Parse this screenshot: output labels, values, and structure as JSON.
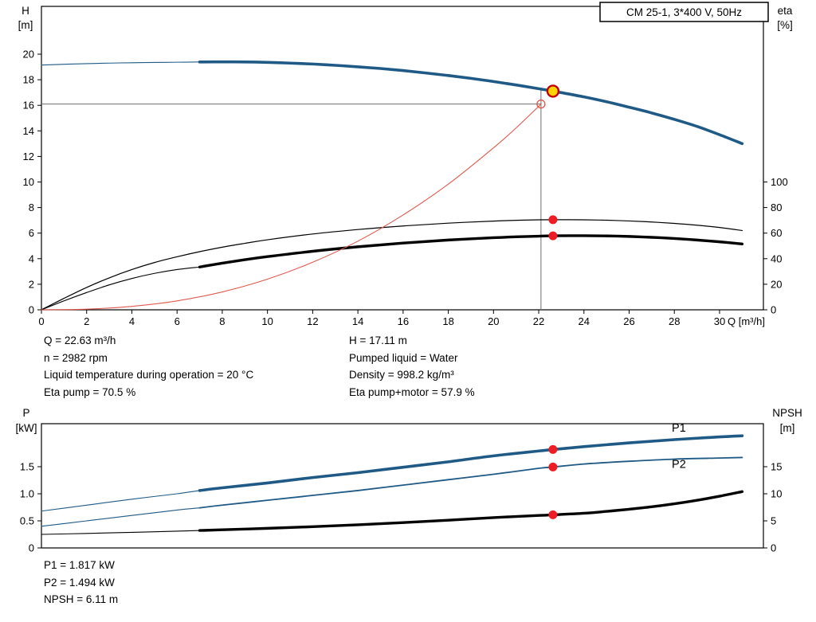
{
  "colors": {
    "blue": "#1f5a87",
    "black": "#000000",
    "red": "#e0584e",
    "marker_red": "#ee1c25",
    "duty_point_fill": "#ffd400",
    "duty_point_ring": "#c00000",
    "ref_line": "#6e6e6e",
    "frame": "#000000"
  },
  "chart_data": [
    {
      "id": "head-efficiency",
      "type": "line",
      "title": "CM 25-1, 3*400 V, 50Hz",
      "x_axis": {
        "label": "Q [m³/h]",
        "min": 0,
        "max": 31.94,
        "ticks": [
          0,
          2,
          4,
          6,
          8,
          10,
          12,
          14,
          16,
          18,
          20,
          22,
          24,
          26,
          28,
          30
        ]
      },
      "y_left": {
        "label": [
          "H",
          "[m]"
        ],
        "min": 0,
        "max": 23.74,
        "ticks": [
          0,
          2,
          4,
          6,
          8,
          10,
          12,
          14,
          16,
          18,
          20
        ]
      },
      "y_right": {
        "label": [
          "eta",
          "[%]"
        ],
        "min": 0,
        "max": 237.4,
        "ticks": [
          0,
          20,
          40,
          60,
          80,
          100
        ]
      },
      "series": [
        {
          "name": "head-low-flow",
          "axis": "left",
          "color": "blue",
          "width": 1.1,
          "points": [
            [
              0,
              19.15
            ],
            [
              1,
              19.21
            ],
            [
              2,
              19.26
            ],
            [
              3,
              19.3
            ],
            [
              4,
              19.33
            ],
            [
              5,
              19.35
            ],
            [
              6,
              19.37
            ],
            [
              7,
              19.39
            ],
            [
              7.6,
              19.4
            ]
          ]
        },
        {
          "name": "head",
          "axis": "left",
          "color": "blue",
          "width": 3.6,
          "points": [
            [
              7,
              19.39
            ],
            [
              8,
              19.4
            ],
            [
              9,
              19.39
            ],
            [
              10,
              19.36
            ],
            [
              11,
              19.3
            ],
            [
              12,
              19.23
            ],
            [
              13,
              19.13
            ],
            [
              14,
              19.01
            ],
            [
              15,
              18.88
            ],
            [
              16,
              18.72
            ],
            [
              17,
              18.53
            ],
            [
              18,
              18.33
            ],
            [
              19,
              18.11
            ],
            [
              20,
              17.86
            ],
            [
              21,
              17.59
            ],
            [
              22,
              17.3
            ],
            [
              22.63,
              17.11
            ],
            [
              23,
              16.99
            ],
            [
              24,
              16.66
            ],
            [
              25,
              16.28
            ],
            [
              26,
              15.85
            ],
            [
              27,
              15.4
            ],
            [
              28,
              14.9
            ],
            [
              29,
              14.35
            ],
            [
              30,
              13.7
            ],
            [
              31,
              13.0
            ]
          ]
        },
        {
          "name": "eta-pump",
          "axis": "right",
          "color": "black",
          "width": 1.2,
          "points": [
            [
              0,
              0
            ],
            [
              1,
              9
            ],
            [
              2,
              17.5
            ],
            [
              3,
              25
            ],
            [
              4,
              31.5
            ],
            [
              5,
              37
            ],
            [
              6,
              41.5
            ],
            [
              7,
              45.5
            ],
            [
              8,
              49
            ],
            [
              9,
              52
            ],
            [
              10,
              54.8
            ],
            [
              12,
              59.3
            ],
            [
              14,
              62.8
            ],
            [
              16,
              65.6
            ],
            [
              18,
              67.8
            ],
            [
              20,
              69.4
            ],
            [
              21,
              70
            ],
            [
              22,
              70.4
            ],
            [
              22.63,
              70.5
            ],
            [
              24,
              70.4
            ],
            [
              25,
              70.1
            ],
            [
              26,
              69.5
            ],
            [
              27,
              68.7
            ],
            [
              28,
              67.6
            ],
            [
              29,
              66.2
            ],
            [
              30,
              64.4
            ],
            [
              31,
              62
            ]
          ]
        },
        {
          "name": "eta-pump-motor-low-flow",
          "axis": "right",
          "color": "black",
          "width": 1.1,
          "points": [
            [
              0,
              0
            ],
            [
              1,
              7
            ],
            [
              2,
              13.5
            ],
            [
              3,
              19.5
            ],
            [
              4,
              24.5
            ],
            [
              5,
              28.5
            ],
            [
              6,
              31.5
            ],
            [
              7,
              33.5
            ]
          ]
        },
        {
          "name": "eta-pump-motor",
          "axis": "right",
          "color": "black",
          "width": 3.4,
          "points": [
            [
              7,
              33.5
            ],
            [
              8,
              36.5
            ],
            [
              9,
              39.2
            ],
            [
              10,
              41.6
            ],
            [
              12,
              45.8
            ],
            [
              14,
              49.3
            ],
            [
              16,
              52.2
            ],
            [
              18,
              54.6
            ],
            [
              20,
              56.4
            ],
            [
              21,
              57.1
            ],
            [
              22,
              57.6
            ],
            [
              22.63,
              57.9
            ],
            [
              24,
              58
            ],
            [
              25,
              57.8
            ],
            [
              26,
              57.4
            ],
            [
              27,
              56.7
            ],
            [
              28,
              55.8
            ],
            [
              29,
              54.6
            ],
            [
              30,
              53.2
            ],
            [
              31,
              51.5
            ]
          ]
        },
        {
          "name": "system-curve",
          "axis": "left",
          "color": "red",
          "width": 1.1,
          "points": [
            [
              0,
              0
            ],
            [
              2,
              0.05
            ],
            [
              4,
              0.27
            ],
            [
              6,
              0.7
            ],
            [
              8,
              1.4
            ],
            [
              10,
              2.4
            ],
            [
              12,
              3.72
            ],
            [
              14,
              5.37
            ],
            [
              16,
              7.42
            ],
            [
              18,
              9.83
            ],
            [
              20,
              12.67
            ],
            [
              21,
              14.23
            ],
            [
              22,
              15.92
            ],
            [
              22.1,
              16.1
            ]
          ]
        }
      ],
      "ref_lines": [
        {
          "type": "v",
          "x": 22.1,
          "y_from": 0,
          "y_to": 17.27
        },
        {
          "type": "h",
          "y": 16.1,
          "x_from": 0,
          "x_to": 22.1
        }
      ],
      "markers": [
        {
          "name": "duty-point",
          "style": "duty",
          "axis": "left",
          "x": 22.63,
          "y": 17.11
        },
        {
          "name": "requested-duty-point",
          "style": "open-red",
          "axis": "left",
          "x": 22.1,
          "y": 16.1
        },
        {
          "name": "eta-pump-duty",
          "style": "red-dot",
          "axis": "right",
          "x": 22.63,
          "y": 70.5
        },
        {
          "name": "eta-pump-motor-duty",
          "style": "red-dot",
          "axis": "right",
          "x": 22.63,
          "y": 57.9
        }
      ]
    },
    {
      "id": "power-npsh",
      "type": "line",
      "x_axis": {
        "label": "",
        "min": 0,
        "max": 31.94,
        "ticks": []
      },
      "y_left": {
        "label": [
          "P",
          "[kW]"
        ],
        "min": 0,
        "max": 2.294,
        "ticks": [
          0,
          0.5,
          1,
          1.5
        ],
        "tick_labels": [
          "0",
          "0.5",
          "1.0",
          "1.5"
        ]
      },
      "y_right": {
        "label": [
          "NPSH",
          "[m]"
        ],
        "min": 0,
        "max": 22.94,
        "ticks": [
          0,
          5,
          10,
          15
        ]
      },
      "series": [
        {
          "name": "p1-low-flow",
          "axis": "left",
          "color": "blue",
          "width": 1.1,
          "points": [
            [
              0,
              0.68
            ],
            [
              2,
              0.79
            ],
            [
              4,
              0.9
            ],
            [
              6,
              1.0
            ],
            [
              7,
              1.06
            ],
            [
              7.6,
              1.09
            ]
          ]
        },
        {
          "name": "p1",
          "axis": "left",
          "color": "blue",
          "width": 3.6,
          "points": [
            [
              7,
              1.06
            ],
            [
              8,
              1.11
            ],
            [
              10,
              1.2
            ],
            [
              12,
              1.3
            ],
            [
              14,
              1.39
            ],
            [
              16,
              1.49
            ],
            [
              18,
              1.59
            ],
            [
              20,
              1.7
            ],
            [
              22,
              1.79
            ],
            [
              22.63,
              1.817
            ],
            [
              24,
              1.87
            ],
            [
              26,
              1.94
            ],
            [
              28,
              2.0
            ],
            [
              30,
              2.05
            ],
            [
              31,
              2.07
            ]
          ]
        },
        {
          "name": "p2-low-flow",
          "axis": "left",
          "color": "blue",
          "width": 1.1,
          "points": [
            [
              0,
              0.4
            ],
            [
              2,
              0.5
            ],
            [
              4,
              0.6
            ],
            [
              6,
              0.7
            ],
            [
              7,
              0.74
            ]
          ]
        },
        {
          "name": "p2",
          "axis": "left",
          "color": "blue",
          "width": 1.8,
          "points": [
            [
              7,
              0.74
            ],
            [
              8,
              0.79
            ],
            [
              10,
              0.88
            ],
            [
              12,
              0.97
            ],
            [
              14,
              1.06
            ],
            [
              16,
              1.16
            ],
            [
              18,
              1.26
            ],
            [
              20,
              1.36
            ],
            [
              22,
              1.47
            ],
            [
              22.63,
              1.494
            ],
            [
              24,
              1.55
            ],
            [
              26,
              1.6
            ],
            [
              28,
              1.64
            ],
            [
              30,
              1.66
            ],
            [
              31,
              1.67
            ]
          ]
        },
        {
          "name": "npsh-low-flow",
          "axis": "right",
          "color": "black",
          "width": 1.1,
          "points": [
            [
              0,
              2.5
            ],
            [
              2,
              2.68
            ],
            [
              4,
              2.88
            ],
            [
              6,
              3.1
            ],
            [
              7,
              3.22
            ],
            [
              7.6,
              3.3
            ]
          ]
        },
        {
          "name": "npsh",
          "axis": "right",
          "color": "black",
          "width": 3.4,
          "points": [
            [
              7,
              3.22
            ],
            [
              8,
              3.35
            ],
            [
              10,
              3.62
            ],
            [
              12,
              3.92
            ],
            [
              14,
              4.28
            ],
            [
              16,
              4.68
            ],
            [
              18,
              5.12
            ],
            [
              20,
              5.6
            ],
            [
              22,
              6.0
            ],
            [
              22.63,
              6.11
            ],
            [
              24,
              6.4
            ],
            [
              25,
              6.75
            ],
            [
              26,
              7.15
            ],
            [
              27,
              7.6
            ],
            [
              28,
              8.15
            ],
            [
              29,
              8.8
            ],
            [
              30,
              9.55
            ],
            [
              31,
              10.4
            ]
          ]
        }
      ],
      "markers": [
        {
          "name": "p1-duty",
          "style": "red-dot",
          "axis": "left",
          "x": 22.63,
          "y": 1.817
        },
        {
          "name": "p2-duty",
          "style": "red-dot",
          "axis": "left",
          "x": 22.63,
          "y": 1.494
        },
        {
          "name": "npsh-duty",
          "style": "red-dot",
          "axis": "right",
          "x": 22.63,
          "y": 6.11
        }
      ],
      "curve_labels": [
        {
          "text": "P1",
          "x": 28.2,
          "y": 2.22,
          "color": "blue"
        },
        {
          "text": "P2",
          "x": 28.2,
          "y": 1.55,
          "color": "blue"
        }
      ]
    }
  ],
  "info_top": {
    "left": [
      "Q = 22.63 m³/h",
      "n = 2982 rpm",
      "Liquid temperature during operation = 20 °C",
      "Eta pump = 70.5 %"
    ],
    "right": [
      "H = 17.11 m",
      "Pumped liquid = Water",
      "Density = 998.2 kg/m³",
      "Eta pump+motor = 57.9 %"
    ]
  },
  "info_bottom": [
    "P1 = 1.817 kW",
    "P2 = 1.494 kW",
    "NPSH = 6.11 m"
  ]
}
